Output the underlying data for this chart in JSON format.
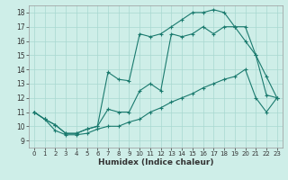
{
  "xlabel": "Humidex (Indice chaleur)",
  "xlim": [
    -0.5,
    23.5
  ],
  "ylim": [
    8.5,
    18.5
  ],
  "xticks": [
    0,
    1,
    2,
    3,
    4,
    5,
    6,
    7,
    8,
    9,
    10,
    11,
    12,
    13,
    14,
    15,
    16,
    17,
    18,
    19,
    20,
    21,
    22,
    23
  ],
  "yticks": [
    9,
    10,
    11,
    12,
    13,
    14,
    15,
    16,
    17,
    18
  ],
  "bg_color": "#ceeee8",
  "grid_color": "#a8d8d0",
  "line_color": "#1a7a6e",
  "line_top_x": [
    0,
    1,
    2,
    3,
    4,
    5,
    6,
    7,
    8,
    9,
    10,
    11,
    12,
    13,
    14,
    15,
    16,
    17,
    18,
    19,
    20,
    21,
    22,
    23
  ],
  "line_top_y": [
    11,
    10.5,
    10.1,
    9.5,
    9.5,
    9.8,
    10.0,
    13.8,
    13.3,
    13.2,
    16.5,
    16.3,
    16.5,
    17.0,
    17.5,
    18.0,
    18.0,
    18.2,
    18.0,
    17.0,
    17.0,
    15.0,
    12.2,
    12.0
  ],
  "line_mid_x": [
    0,
    1,
    2,
    3,
    4,
    5,
    6,
    7,
    8,
    9,
    10,
    11,
    12,
    13,
    14,
    15,
    16,
    17,
    18,
    19,
    20,
    21,
    22,
    23
  ],
  "line_mid_y": [
    11,
    10.5,
    10.1,
    9.5,
    9.5,
    9.8,
    10.0,
    11.2,
    11.0,
    11.0,
    12.5,
    13.0,
    12.5,
    16.5,
    16.3,
    16.5,
    17.0,
    16.5,
    17.0,
    17.0,
    16.0,
    15.0,
    13.5,
    12.0
  ],
  "line_bot_x": [
    0,
    1,
    2,
    3,
    4,
    5,
    6,
    7,
    8,
    9,
    10,
    11,
    12,
    13,
    14,
    15,
    16,
    17,
    18,
    19,
    20,
    21,
    22,
    23
  ],
  "line_bot_y": [
    11,
    10.5,
    9.7,
    9.4,
    9.4,
    9.5,
    9.8,
    10.0,
    10.0,
    10.3,
    10.5,
    11.0,
    11.3,
    11.7,
    12.0,
    12.3,
    12.7,
    13.0,
    13.3,
    13.5,
    14.0,
    12.0,
    11.0,
    12.0
  ]
}
